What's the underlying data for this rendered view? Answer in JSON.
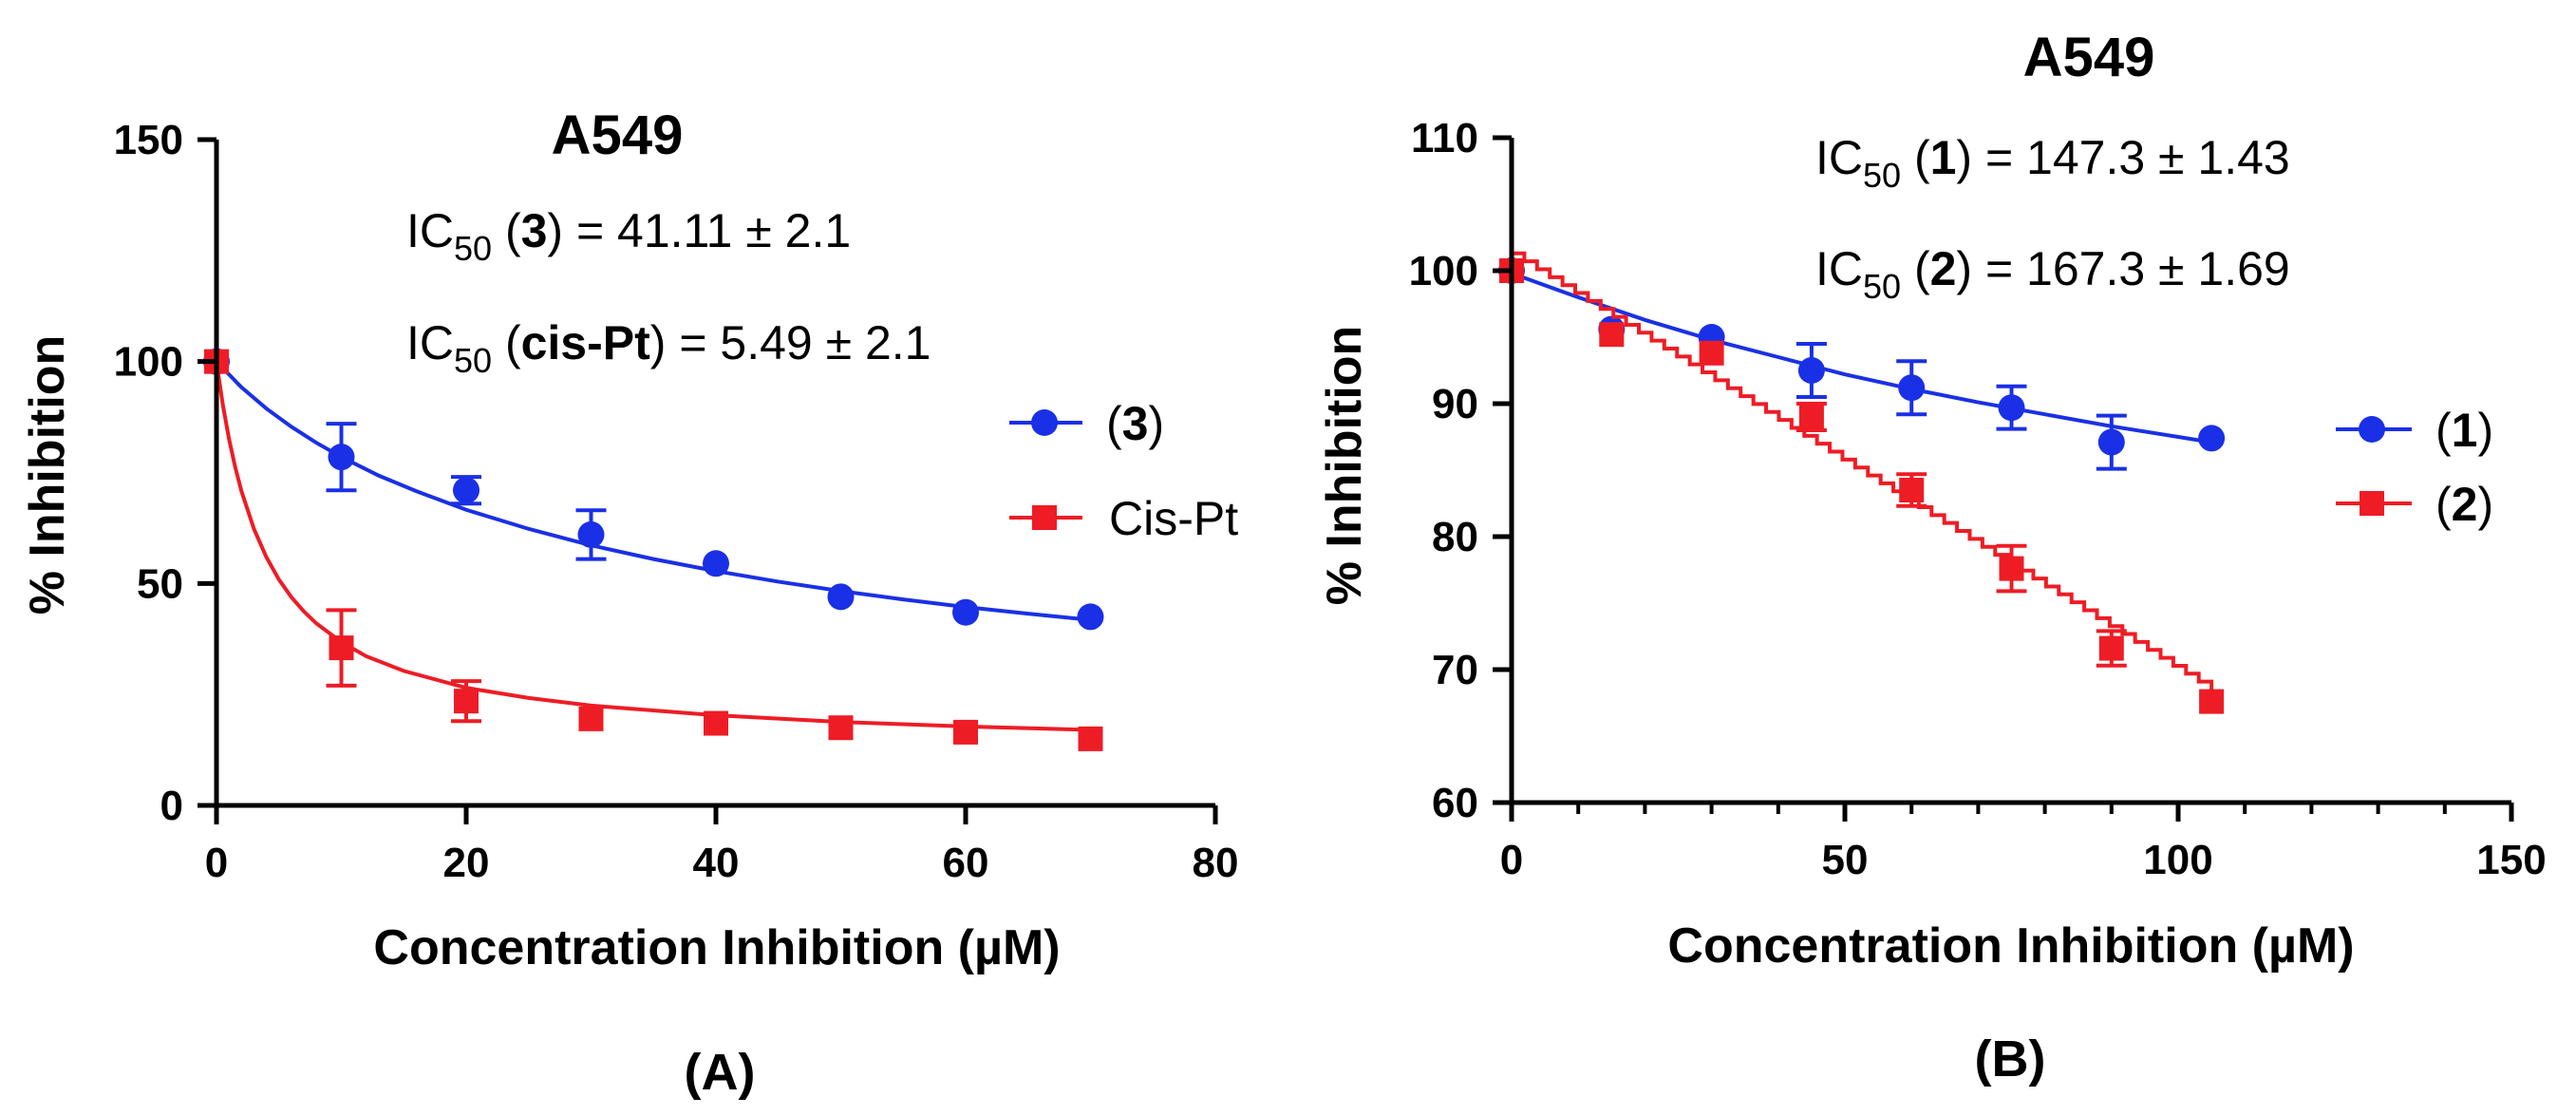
{
  "chart_data": [
    {
      "type": "scatter",
      "panel_label": "(A)",
      "title": "A549",
      "xlabel": "Concentration Inhibition (µM)",
      "ylabel": "% Inhibition",
      "xlim": [
        0,
        80
      ],
      "ylim": [
        0,
        150
      ],
      "xticks": [
        "0",
        "20",
        "40",
        "60",
        "80"
      ],
      "yticks": [
        "0",
        "50",
        "100",
        "150"
      ],
      "annotations": [
        {
          "prefix": "IC",
          "sub": "50",
          "compound": "3",
          "rest": " = 41.11 ± 2.1"
        },
        {
          "prefix": "IC",
          "sub": "50",
          "compound": "cis-Pt",
          "rest": " = 5.49 ± 2.1"
        }
      ],
      "legend": [
        {
          "open": "(",
          "label": "3",
          "close": ")",
          "bold": true
        },
        {
          "open": "",
          "label": "Cis-Pt",
          "close": "",
          "bold": false
        }
      ],
      "series": [
        {
          "name": "3",
          "color": "#1a30e6",
          "marker": "circle",
          "x": [
            0,
            10,
            20,
            30,
            40,
            50,
            60,
            70
          ],
          "y": [
            100,
            78.5,
            71,
            61,
            54.5,
            47,
            43.5,
            42.5
          ],
          "err": [
            0,
            7.5,
            3,
            5.5,
            0,
            0,
            0,
            0
          ],
          "fit_x": [
            0,
            2,
            4,
            6,
            8,
            10,
            13,
            16,
            20,
            25,
            30,
            35,
            40,
            45,
            50,
            55,
            60,
            65,
            70
          ],
          "fit_y": [
            100,
            94.2,
            89.4,
            85.3,
            81.7,
            78.5,
            74.3,
            70.8,
            66.6,
            62.3,
            58.6,
            55.5,
            52.8,
            50.4,
            48.3,
            46.4,
            44.7,
            43.2,
            41.8
          ]
        },
        {
          "name": "Cis-Pt",
          "color": "#ee1c25",
          "marker": "square",
          "x": [
            0,
            10,
            20,
            30,
            40,
            50,
            60,
            70
          ],
          "y": [
            100,
            35.5,
            23.5,
            19.5,
            18.5,
            17.5,
            16.5,
            15
          ],
          "err": [
            0,
            8.5,
            4.5,
            0,
            0,
            0,
            0,
            0
          ],
          "fit_x": [
            0,
            0.5,
            1,
            1.5,
            2,
            3,
            4,
            5,
            6,
            7,
            8,
            10,
            12,
            15,
            20,
            25,
            30,
            40,
            50,
            60,
            70
          ],
          "fit_y": [
            100,
            90.4,
            82.6,
            76.2,
            70.8,
            62.3,
            55.9,
            50.9,
            46.9,
            43.7,
            41.0,
            36.8,
            33.6,
            30.3,
            26.5,
            24.2,
            22.5,
            20.3,
            18.8,
            17.8,
            17.0
          ]
        }
      ]
    },
    {
      "type": "scatter",
      "panel_label": "(B)",
      "title": "A549",
      "xlabel": "Concentration Inhibition (µM)",
      "ylabel": "% Inhibition",
      "xlim": [
        0,
        150
      ],
      "ylim": [
        60,
        110
      ],
      "xticks": [
        "0",
        "50",
        "100",
        "150"
      ],
      "yticks": [
        "60",
        "70",
        "80",
        "90",
        "100",
        "110"
      ],
      "annotations": [
        {
          "prefix": "IC",
          "sub": "50",
          "compound": "1",
          "rest": " = 147.3  ± 1.43"
        },
        {
          "prefix": "IC",
          "sub": "50",
          "compound": "2",
          "rest": " = 167.3  ± 1.69"
        }
      ],
      "legend": [
        {
          "open": "(",
          "label": "1",
          "close": ")",
          "bold": true
        },
        {
          "open": "(",
          "label": "2",
          "close": ")",
          "bold": true
        }
      ],
      "series": [
        {
          "name": "1",
          "color": "#1a30e6",
          "marker": "circle",
          "x": [
            0,
            15,
            30,
            45,
            60,
            75,
            90,
            105
          ],
          "y": [
            100,
            95.6,
            95,
            92.5,
            91.2,
            89.7,
            87.1,
            87.4
          ],
          "err": [
            0,
            0,
            0,
            2.0,
            2.0,
            1.6,
            2.0,
            0
          ],
          "fit_x": [
            0,
            10,
            20,
            30,
            40,
            50,
            60,
            70,
            80,
            90,
            100,
            105
          ],
          "fit_y": [
            99.8,
            98.0,
            96.3,
            94.8,
            93.5,
            92.2,
            91.1,
            90.1,
            89.2,
            88.3,
            87.5,
            87.1
          ],
          "step": false
        },
        {
          "name": "2",
          "color": "#ee1c25",
          "marker": "square",
          "x": [
            0,
            15,
            30,
            45,
            60,
            75,
            90,
            105
          ],
          "y": [
            100,
            95.2,
            93.8,
            89,
            83.5,
            77.6,
            71.6,
            67.6
          ],
          "err": [
            0,
            0,
            0,
            1.0,
            1.2,
            1.7,
            1.3,
            0
          ],
          "fit_x": [
            0,
            105
          ],
          "fit_y": [
            101.3,
            68.5
          ],
          "step": true
        }
      ]
    }
  ]
}
